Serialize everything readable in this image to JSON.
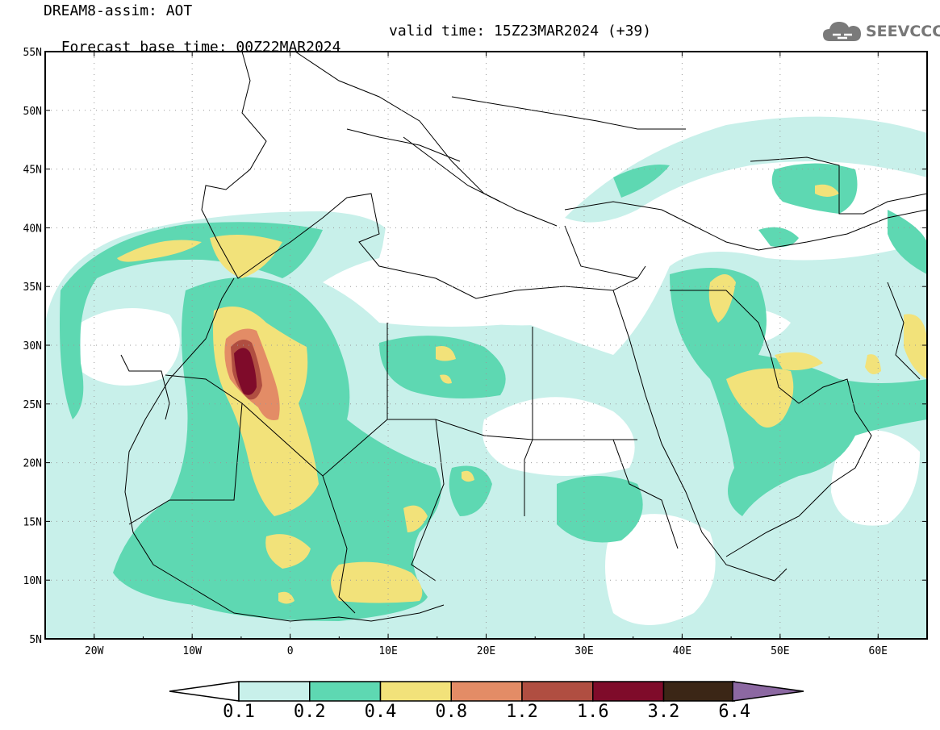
{
  "title": {
    "line1": "DREAM8-assim: AOT",
    "base_time": "Forecast base time: 00Z22MAR2024",
    "valid_time": "valid time: 15Z23MAR2024 (+39)"
  },
  "logo": {
    "text": "SEEVCCC",
    "icon": "cloud-icon"
  },
  "lat_labels": [
    "55N",
    "50N",
    "45N",
    "40N",
    "35N",
    "30N",
    "25N",
    "20N",
    "15N",
    "10N",
    "5N"
  ],
  "lon_labels": [
    "20W",
    "10W",
    "0",
    "10E",
    "20E",
    "30E",
    "40E",
    "50E",
    "60E"
  ],
  "colorbar": {
    "levels": [
      "0.1",
      "0.2",
      "0.4",
      "0.8",
      "1.2",
      "1.6",
      "3.2",
      "6.4"
    ],
    "colors": [
      "#c8f0ea",
      "#5ed8b2",
      "#f2e27a",
      "#e38c66",
      "#b04e41",
      "#7f0b2a",
      "#3b2616",
      "#8c68a2"
    ],
    "under_color": "#ffffff"
  },
  "map_extent": {
    "lon": [
      -25,
      65
    ],
    "lat": [
      5,
      55
    ]
  }
}
